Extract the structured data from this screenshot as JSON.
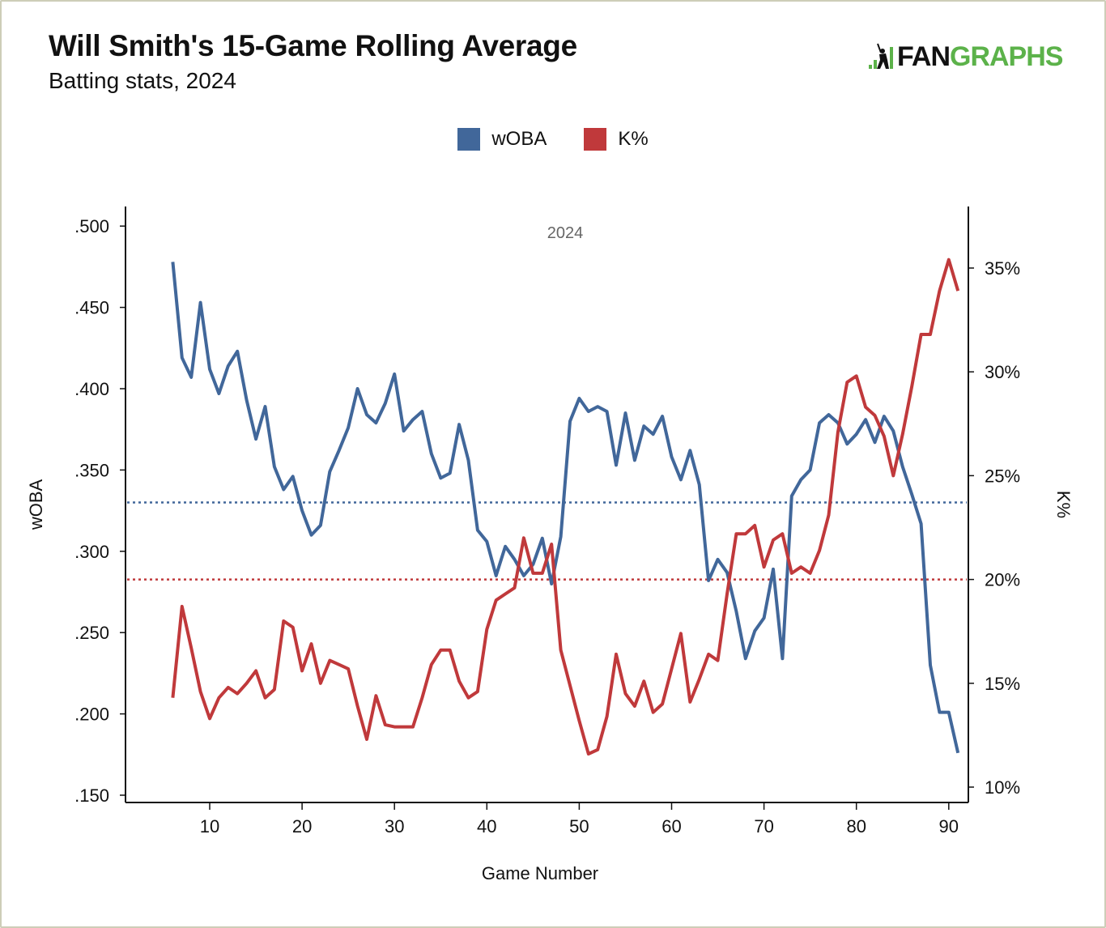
{
  "header": {
    "title": "Will Smith's 15-Game Rolling Average",
    "subtitle": "Batting stats, 2024",
    "logo_text": "FANGRAPHS",
    "logo_colors": {
      "fan": "#111111",
      "graphs": "#5cb24a"
    }
  },
  "chart_data": {
    "type": "line",
    "title": "Will Smith's 15-Game Rolling Average",
    "subtitle": "Batting stats, 2024",
    "annotation": "2024",
    "xlabel": "Game Number",
    "ylabel": "wOBA",
    "y2label": "K%",
    "xlim": [
      2,
      93
    ],
    "ylim": [
      0.15,
      0.5
    ],
    "y2lim": [
      10,
      37.2
    ],
    "xticks": [
      10,
      20,
      30,
      40,
      50,
      60,
      70,
      80,
      90
    ],
    "xtick_labels": [
      "10",
      "20",
      "30",
      "40",
      "50",
      "60",
      "70",
      "80",
      "90"
    ],
    "yticks": [
      0.5,
      0.45,
      0.4,
      0.35,
      0.3,
      0.25,
      0.2,
      0.15
    ],
    "ytick_labels": [
      ".500",
      ".450",
      ".400",
      ".350",
      ".300",
      ".250",
      ".200",
      ".150"
    ],
    "y2ticks": [
      35,
      30,
      25,
      20,
      15,
      10
    ],
    "y2tick_labels": [
      "35%",
      "30%",
      "25%",
      "20%",
      "15%",
      "10%"
    ],
    "grid": false,
    "legend_position": "top-center",
    "x": [
      6,
      7,
      8,
      9,
      10,
      11,
      12,
      13,
      14,
      15,
      16,
      17,
      18,
      19,
      20,
      21,
      22,
      23,
      24,
      25,
      26,
      27,
      28,
      29,
      30,
      31,
      32,
      33,
      34,
      35,
      36,
      37,
      38,
      39,
      40,
      41,
      42,
      43,
      44,
      45,
      46,
      47,
      48,
      49,
      50,
      51,
      52,
      53,
      54,
      55,
      56,
      57,
      58,
      59,
      60,
      61,
      62,
      63,
      64,
      65,
      66,
      67,
      68,
      69,
      70,
      71,
      72,
      73,
      74,
      75,
      76,
      77,
      78,
      79,
      80,
      81,
      82,
      83,
      84,
      85,
      86,
      87,
      88,
      89,
      90,
      91
    ],
    "series": [
      {
        "name": "wOBA",
        "axis": "left",
        "color": "#41679a",
        "reference_line": 0.33,
        "values": [
          0.478,
          0.419,
          0.407,
          0.453,
          0.412,
          0.397,
          0.414,
          0.423,
          0.393,
          0.369,
          0.389,
          0.352,
          0.338,
          0.346,
          0.325,
          0.31,
          0.316,
          0.349,
          0.362,
          0.376,
          0.4,
          0.384,
          0.379,
          0.391,
          0.409,
          0.374,
          0.381,
          0.386,
          0.36,
          0.345,
          0.348,
          0.378,
          0.356,
          0.313,
          0.306,
          0.285,
          0.303,
          0.295,
          0.285,
          0.292,
          0.308,
          0.28,
          0.309,
          0.38,
          0.394,
          0.386,
          0.389,
          0.386,
          0.353,
          0.385,
          0.356,
          0.377,
          0.372,
          0.383,
          0.358,
          0.344,
          0.362,
          0.341,
          0.282,
          0.295,
          0.287,
          0.263,
          0.234,
          0.251,
          0.259,
          0.289,
          0.234,
          0.334,
          0.344,
          0.35,
          0.379,
          0.384,
          0.379,
          0.366,
          0.372,
          0.381,
          0.367,
          0.383,
          0.374,
          0.352,
          0.335,
          0.317,
          0.23,
          0.201,
          0.201,
          0.176
        ]
      },
      {
        "name": "K%",
        "axis": "right",
        "color": "#c0393b",
        "reference_line": 20.0,
        "values": [
          14.3,
          18.7,
          16.7,
          14.6,
          13.3,
          14.3,
          14.8,
          14.5,
          15.0,
          15.6,
          14.3,
          14.7,
          18.0,
          17.7,
          15.6,
          16.9,
          15.0,
          16.1,
          15.9,
          15.7,
          13.9,
          12.3,
          14.4,
          13.0,
          12.9,
          12.9,
          12.9,
          14.3,
          15.9,
          16.6,
          16.6,
          15.1,
          14.3,
          14.6,
          17.6,
          19.0,
          19.3,
          19.6,
          22.0,
          20.3,
          20.3,
          21.7,
          16.6,
          14.9,
          13.2,
          11.6,
          11.8,
          13.4,
          16.4,
          14.5,
          13.9,
          15.1,
          13.6,
          14.0,
          15.7,
          17.4,
          14.1,
          15.2,
          16.4,
          16.1,
          19.3,
          22.2,
          22.2,
          22.6,
          20.6,
          21.9,
          22.2,
          20.3,
          20.6,
          20.3,
          21.4,
          23.1,
          27.1,
          29.5,
          29.8,
          28.3,
          27.9,
          26.9,
          25.0,
          27.0,
          29.3,
          31.8,
          31.8,
          33.9,
          35.4,
          33.9
        ]
      }
    ]
  }
}
